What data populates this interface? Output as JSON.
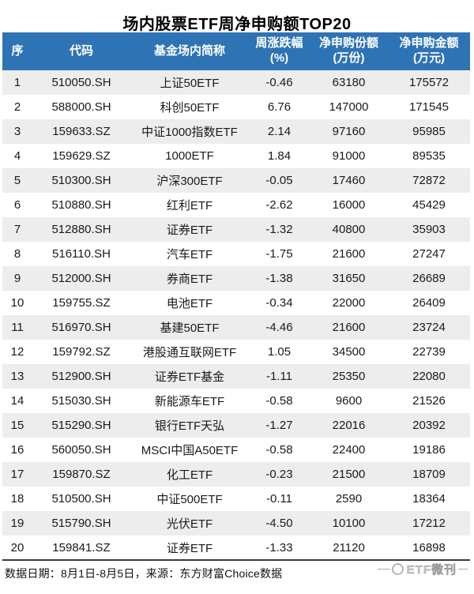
{
  "title": "场内股票ETF周净申购额TOP20",
  "colors": {
    "header_bg": "#2E74B5",
    "header_text": "#FFFFFF",
    "row_alt_bg": "#EDEDED",
    "border_dark": "#3A3A3A",
    "watermark_gray": "#A8A8A8"
  },
  "table": {
    "headers": [
      {
        "label": "序",
        "sub": ""
      },
      {
        "label": "代码",
        "sub": ""
      },
      {
        "label": "基金场内简称",
        "sub": ""
      },
      {
        "label": "周涨跌幅",
        "sub": "(%)"
      },
      {
        "label": "净申购份额",
        "sub": "(万份)"
      },
      {
        "label": "净申购金额",
        "sub": "(万元)"
      }
    ],
    "rows": [
      [
        "1",
        "510050.SH",
        "上证50ETF",
        "-0.46",
        "63180",
        "175572"
      ],
      [
        "2",
        "588000.SH",
        "科创50ETF",
        "6.76",
        "147000",
        "171545"
      ],
      [
        "3",
        "159633.SZ",
        "中证1000指数ETF",
        "2.14",
        "97160",
        "95985"
      ],
      [
        "4",
        "159629.SZ",
        "1000ETF",
        "1.84",
        "91000",
        "89535"
      ],
      [
        "5",
        "510300.SH",
        "沪深300ETF",
        "-0.05",
        "17460",
        "72872"
      ],
      [
        "6",
        "510880.SH",
        "红利ETF",
        "-2.62",
        "16000",
        "45429"
      ],
      [
        "7",
        "512880.SH",
        "证券ETF",
        "-1.32",
        "40800",
        "35903"
      ],
      [
        "8",
        "516110.SH",
        "汽车ETF",
        "-1.75",
        "21600",
        "27247"
      ],
      [
        "9",
        "512000.SH",
        "券商ETF",
        "-1.38",
        "31650",
        "26689"
      ],
      [
        "10",
        "159755.SZ",
        "电池ETF",
        "-0.34",
        "22000",
        "26409"
      ],
      [
        "11",
        "516970.SH",
        "基建50ETF",
        "-4.46",
        "21600",
        "23724"
      ],
      [
        "12",
        "159792.SZ",
        "港股通互联网ETF",
        "1.05",
        "34500",
        "22739"
      ],
      [
        "13",
        "512900.SH",
        "证券ETF基金",
        "-1.11",
        "25350",
        "22080"
      ],
      [
        "14",
        "515030.SH",
        "新能源车ETF",
        "-0.58",
        "9600",
        "21526"
      ],
      [
        "15",
        "515290.SH",
        "银行ETF天弘",
        "-1.27",
        "22016",
        "20392"
      ],
      [
        "16",
        "560050.SH",
        "MSCI中国A50ETF",
        "-0.58",
        "22400",
        "19186"
      ],
      [
        "17",
        "159870.SZ",
        "化工ETF",
        "-0.23",
        "21500",
        "18709"
      ],
      [
        "18",
        "510500.SH",
        "中证500ETF",
        "-0.11",
        "2590",
        "18364"
      ],
      [
        "19",
        "515790.SH",
        "光伏ETF",
        "-4.50",
        "10100",
        "17212"
      ],
      [
        "20",
        "159841.SZ",
        "证券ETF",
        "-1.33",
        "21120",
        "16898"
      ]
    ]
  },
  "footer": {
    "note": "数据日期：8月1日-8月5日，来源：东方财富Choice数据"
  },
  "watermark": {
    "label": "ETF微刊"
  }
}
